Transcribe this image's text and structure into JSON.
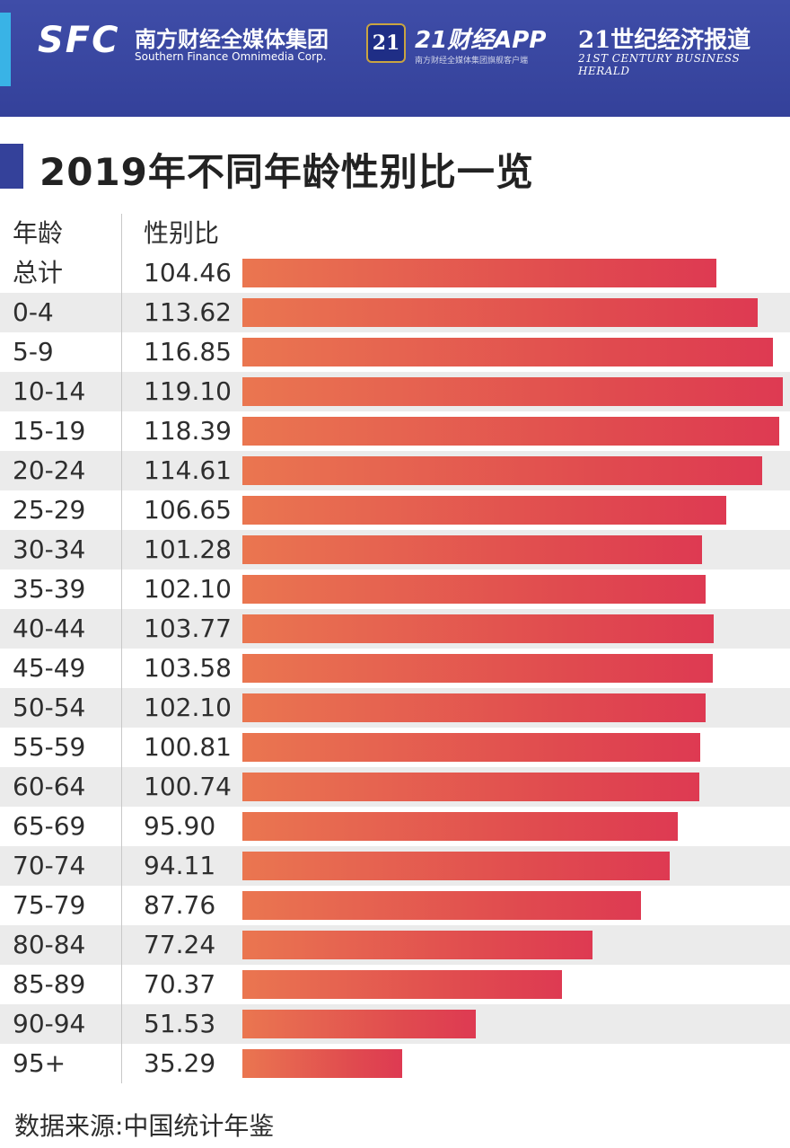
{
  "header": {
    "sfc_logo": "SFC",
    "sfc_name": "南方财经全媒体集团",
    "sfc_name_en": "Southern Finance Omnimedia Corp.",
    "app_badge": "21",
    "app_name": "21财经APP",
    "app_tagline": "南方财经全媒体集团旗舰客户端",
    "herald_name": "21世纪经济报道",
    "herald_name_en": "21ST CENTURY BUSINESS HERALD",
    "colors": {
      "banner": "#34419a",
      "accent": "#39b3e6"
    }
  },
  "chart_data": {
    "type": "bar",
    "orientation": "horizontal",
    "title": "2019年不同年龄性别比一览",
    "column_headers": {
      "age": "年龄",
      "ratio": "性别比"
    },
    "categories": [
      "总计",
      "0-4",
      "5-9",
      "10-14",
      "15-19",
      "20-24",
      "25-29",
      "30-34",
      "35-39",
      "40-44",
      "45-49",
      "50-54",
      "55-59",
      "60-64",
      "65-69",
      "70-74",
      "75-79",
      "80-84",
      "85-89",
      "90-94",
      "95+"
    ],
    "values": [
      "104.46",
      "113.62",
      "116.85",
      "119.10",
      "118.39",
      "114.61",
      "106.65",
      "101.28",
      "102.10",
      "103.77",
      "103.58",
      "102.10",
      "100.81",
      "100.74",
      "95.90",
      "94.11",
      "87.76",
      "77.24",
      "70.37",
      "51.53",
      "35.29"
    ],
    "bar_colors": [
      "#ea7650",
      "#de3a52"
    ],
    "source": "数据来源:中国统计年鉴"
  }
}
